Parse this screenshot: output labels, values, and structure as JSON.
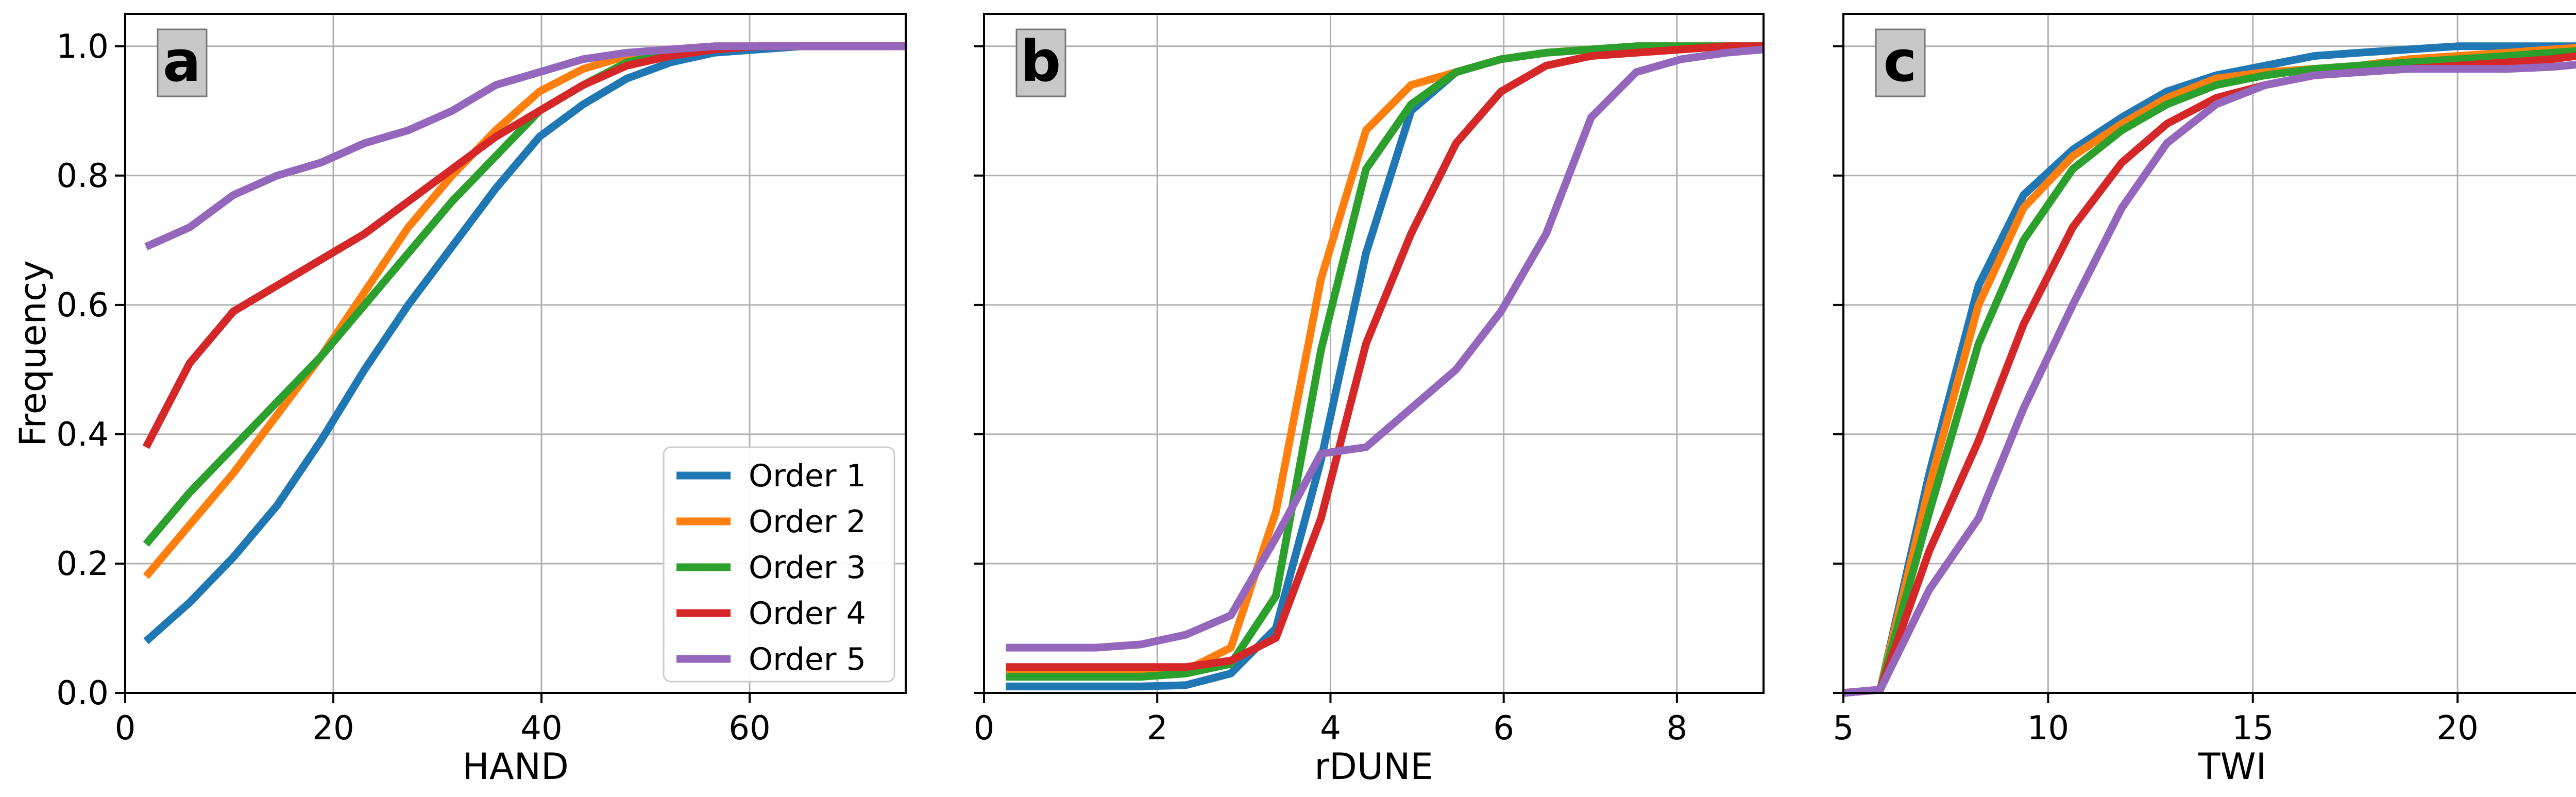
{
  "colors": {
    "order_1": "#1f77b4",
    "order_2": "#ff7f0e",
    "order_3": "#2ca02c",
    "order_4": "#d62728",
    "order_5": "#9467bd",
    "grid": "#b0b0b0",
    "letter_box": "#c8c8c8"
  },
  "chart_data": [
    {
      "type": "line",
      "panel": "a",
      "xlabel": "HAND",
      "ylabel": "Frequency",
      "xlim": [
        0,
        75
      ],
      "ylim": [
        0,
        1.05
      ],
      "xticks": [
        0,
        20,
        40,
        60
      ],
      "yticks": [
        0.0,
        0.2,
        0.4,
        0.6,
        0.8,
        1.0
      ],
      "yticklabels": [
        "0.0",
        "0.2",
        "0.4",
        "0.6",
        "0.8",
        "1.0"
      ],
      "grid": true,
      "legend": "lower right",
      "x": [
        2,
        6.2,
        10.4,
        14.6,
        18.8,
        23,
        27.2,
        31.4,
        35.6,
        39.8,
        44,
        48.2,
        52.4,
        56.6,
        60.8,
        65,
        69.2,
        75
      ],
      "series": [
        {
          "name": "Order 1",
          "values": [
            0.08,
            0.14,
            0.21,
            0.29,
            0.39,
            0.5,
            0.6,
            0.69,
            0.78,
            0.86,
            0.91,
            0.95,
            0.975,
            0.99,
            0.995,
            1.0,
            1.0,
            1.0
          ]
        },
        {
          "name": "Order 2",
          "values": [
            0.18,
            0.26,
            0.34,
            0.43,
            0.52,
            0.62,
            0.72,
            0.8,
            0.87,
            0.93,
            0.965,
            0.985,
            0.995,
            1.0,
            1.0,
            1.0,
            1.0,
            1.0
          ]
        },
        {
          "name": "Order 3",
          "values": [
            0.23,
            0.31,
            0.38,
            0.45,
            0.52,
            0.6,
            0.68,
            0.76,
            0.83,
            0.9,
            0.94,
            0.975,
            0.99,
            0.995,
            1.0,
            1.0,
            1.0,
            1.0
          ]
        },
        {
          "name": "Order 4",
          "values": [
            0.38,
            0.51,
            0.59,
            0.63,
            0.67,
            0.71,
            0.76,
            0.81,
            0.86,
            0.9,
            0.94,
            0.97,
            0.985,
            0.995,
            1.0,
            1.0,
            1.0,
            1.0
          ]
        },
        {
          "name": "Order 5",
          "values": [
            0.69,
            0.72,
            0.77,
            0.8,
            0.82,
            0.85,
            0.87,
            0.9,
            0.94,
            0.96,
            0.98,
            0.99,
            0.995,
            1.0,
            1.0,
            1.0,
            1.0,
            1.0
          ]
        }
      ]
    },
    {
      "type": "line",
      "panel": "b",
      "xlabel": "rDUNE",
      "ylabel": "",
      "xlim": [
        0,
        9
      ],
      "ylim": [
        0,
        1.05
      ],
      "xticks": [
        0,
        2,
        4,
        6,
        8
      ],
      "yticks": [
        0.0,
        0.2,
        0.4,
        0.6,
        0.8,
        1.0
      ],
      "yticklabels": [],
      "grid": true,
      "legend": "",
      "x": [
        0.25,
        0.77,
        1.29,
        1.81,
        2.33,
        2.85,
        3.37,
        3.89,
        4.41,
        4.93,
        5.45,
        5.97,
        6.49,
        7.01,
        7.53,
        8.05,
        8.57,
        9.0
      ],
      "series": [
        {
          "name": "Order 1",
          "values": [
            0.01,
            0.01,
            0.01,
            0.01,
            0.012,
            0.03,
            0.1,
            0.36,
            0.68,
            0.9,
            0.96,
            0.98,
            0.99,
            0.995,
            1.0,
            1.0,
            1.0,
            1.0
          ]
        },
        {
          "name": "Order 2",
          "values": [
            0.03,
            0.03,
            0.03,
            0.03,
            0.035,
            0.07,
            0.28,
            0.64,
            0.87,
            0.94,
            0.96,
            0.98,
            0.99,
            0.995,
            1.0,
            1.0,
            1.0,
            1.0
          ]
        },
        {
          "name": "Order 3",
          "values": [
            0.025,
            0.025,
            0.025,
            0.025,
            0.03,
            0.045,
            0.15,
            0.53,
            0.81,
            0.91,
            0.96,
            0.98,
            0.99,
            0.995,
            1.0,
            1.0,
            1.0,
            1.0
          ]
        },
        {
          "name": "Order 4",
          "values": [
            0.04,
            0.04,
            0.04,
            0.04,
            0.04,
            0.05,
            0.085,
            0.27,
            0.54,
            0.71,
            0.85,
            0.93,
            0.97,
            0.985,
            0.99,
            0.995,
            1.0,
            1.0
          ]
        },
        {
          "name": "Order 5",
          "values": [
            0.07,
            0.07,
            0.07,
            0.075,
            0.09,
            0.12,
            0.24,
            0.37,
            0.38,
            0.44,
            0.5,
            0.59,
            0.71,
            0.89,
            0.96,
            0.98,
            0.99,
            0.995
          ]
        }
      ]
    },
    {
      "type": "line",
      "panel": "c",
      "xlabel": "TWI",
      "ylabel": "",
      "xlim": [
        5,
        24
      ],
      "ylim": [
        0,
        1.05
      ],
      "xticks": [
        5,
        10,
        15,
        20
      ],
      "yticks": [
        0.0,
        0.2,
        0.4,
        0.6,
        0.8,
        1.0
      ],
      "yticklabels": [],
      "grid": true,
      "legend": "",
      "x": [
        5.0,
        5.9,
        7.1,
        8.3,
        9.4,
        10.6,
        11.8,
        12.9,
        14.1,
        15.3,
        16.5,
        17.6,
        18.8,
        20.0,
        21.2,
        22.3,
        23.5,
        24.0
      ],
      "series": [
        {
          "name": "Order 1",
          "values": [
            0.0,
            0.005,
            0.34,
            0.63,
            0.77,
            0.84,
            0.89,
            0.93,
            0.955,
            0.97,
            0.985,
            0.99,
            0.995,
            1.0,
            1.0,
            1.0,
            1.0,
            1.0
          ]
        },
        {
          "name": "Order 2",
          "values": [
            0.0,
            0.005,
            0.32,
            0.6,
            0.75,
            0.83,
            0.88,
            0.92,
            0.95,
            0.96,
            0.965,
            0.97,
            0.98,
            0.985,
            0.99,
            0.995,
            1.0,
            1.0
          ]
        },
        {
          "name": "Order 3",
          "values": [
            0.0,
            0.005,
            0.28,
            0.54,
            0.7,
            0.81,
            0.87,
            0.91,
            0.94,
            0.955,
            0.965,
            0.97,
            0.975,
            0.98,
            0.985,
            0.99,
            0.995,
            1.0
          ]
        },
        {
          "name": "Order 4",
          "values": [
            0.0,
            0.005,
            0.22,
            0.39,
            0.57,
            0.72,
            0.82,
            0.88,
            0.92,
            0.94,
            0.955,
            0.96,
            0.965,
            0.97,
            0.975,
            0.98,
            0.99,
            1.0
          ]
        },
        {
          "name": "Order 5",
          "values": [
            0.0,
            0.005,
            0.16,
            0.27,
            0.44,
            0.6,
            0.75,
            0.85,
            0.91,
            0.94,
            0.955,
            0.96,
            0.965,
            0.965,
            0.965,
            0.968,
            0.975,
            0.99
          ]
        }
      ]
    }
  ]
}
